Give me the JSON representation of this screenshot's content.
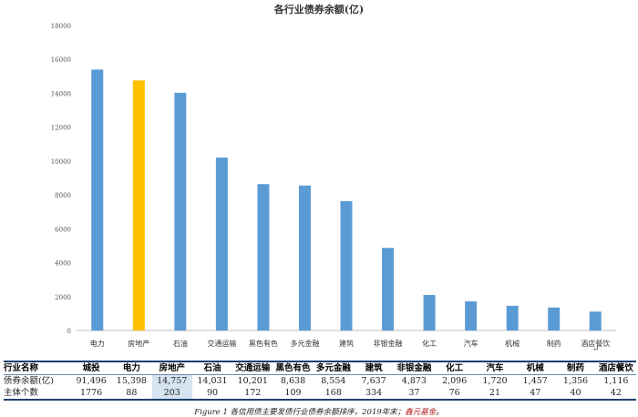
{
  "chart_data": {
    "type": "bar",
    "title": "各行业债券余额(亿)",
    "categories": [
      "电力",
      "房地产",
      "石油",
      "交通运输",
      "黑色有色",
      "多元金融",
      "建筑",
      "非银金融",
      "化工",
      "汽车",
      "机械",
      "制药",
      "酒店餐饮"
    ],
    "values": [
      15398,
      14757,
      14031,
      10201,
      8638,
      8554,
      7637,
      4873,
      2096,
      1720,
      1457,
      1356,
      1116
    ],
    "highlight_category": "房地产",
    "bar_color": "#5b9bd5",
    "highlight_color": "#ffc000",
    "ylim": [
      0,
      18000
    ],
    "yticks": [
      0,
      2000,
      4000,
      6000,
      8000,
      10000,
      12000,
      14000,
      16000,
      18000
    ],
    "ytick_labels": [
      "0",
      "2000",
      "4000",
      "6000",
      "8000",
      "10000",
      "12000",
      "14000",
      "16000",
      "18000"
    ],
    "grid": false
  },
  "table": {
    "header": [
      "行业名称",
      "城投",
      "电力",
      "房地产",
      "石油",
      "交通运输",
      "黑色有色",
      "多元金融",
      "建筑",
      "非银金融",
      "化工",
      "汽车",
      "机械",
      "制药",
      "酒店餐饮"
    ],
    "rows": [
      [
        "债券余额(亿)",
        "91,496",
        "15,398",
        "14,757",
        "14,031",
        "10,201",
        "8,638",
        "8,554",
        "7,637",
        "4,873",
        "2,096",
        "1,720",
        "1,457",
        "1,356",
        "1,116"
      ],
      [
        "主体个数",
        "1776",
        "88",
        "203",
        "90",
        "172",
        "109",
        "168",
        "334",
        "37",
        "76",
        "21",
        "47",
        "40",
        "42"
      ]
    ],
    "highlight_column": 3
  },
  "caption": {
    "prefix": "Figure 1 各信用债主要发债行业债券余额排序，2019年末；",
    "source": "鑫元基金",
    "suffix": "。"
  },
  "mark": "↵"
}
